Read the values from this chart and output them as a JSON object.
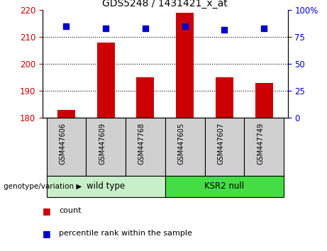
{
  "title": "GDS5248 / 1431421_x_at",
  "categories": [
    "GSM447606",
    "GSM447609",
    "GSM447768",
    "GSM447605",
    "GSM447607",
    "GSM447749"
  ],
  "bar_values": [
    183.0,
    208.0,
    195.0,
    219.0,
    195.0,
    193.0
  ],
  "percentile_values": [
    85,
    83,
    83,
    85,
    82,
    83
  ],
  "bar_color": "#cc0000",
  "percentile_color": "#0000cc",
  "ylim_left": [
    180,
    220
  ],
  "ylim_right": [
    0,
    100
  ],
  "yticks_left": [
    180,
    190,
    200,
    210,
    220
  ],
  "yticks_right": [
    0,
    25,
    50,
    75,
    100
  ],
  "ytick_labels_right": [
    "0",
    "25",
    "50",
    "75",
    "100%"
  ],
  "groups": [
    {
      "label": "wild type",
      "indices": [
        0,
        1,
        2
      ],
      "color": "#c8f0c8"
    },
    {
      "label": "KSR2 null",
      "indices": [
        3,
        4,
        5
      ],
      "color": "#44dd44"
    }
  ],
  "group_label": "genotype/variation",
  "legend_count_label": "count",
  "legend_percentile_label": "percentile rank within the sample",
  "xtick_bg": "#d0d0d0",
  "bar_width": 0.45
}
